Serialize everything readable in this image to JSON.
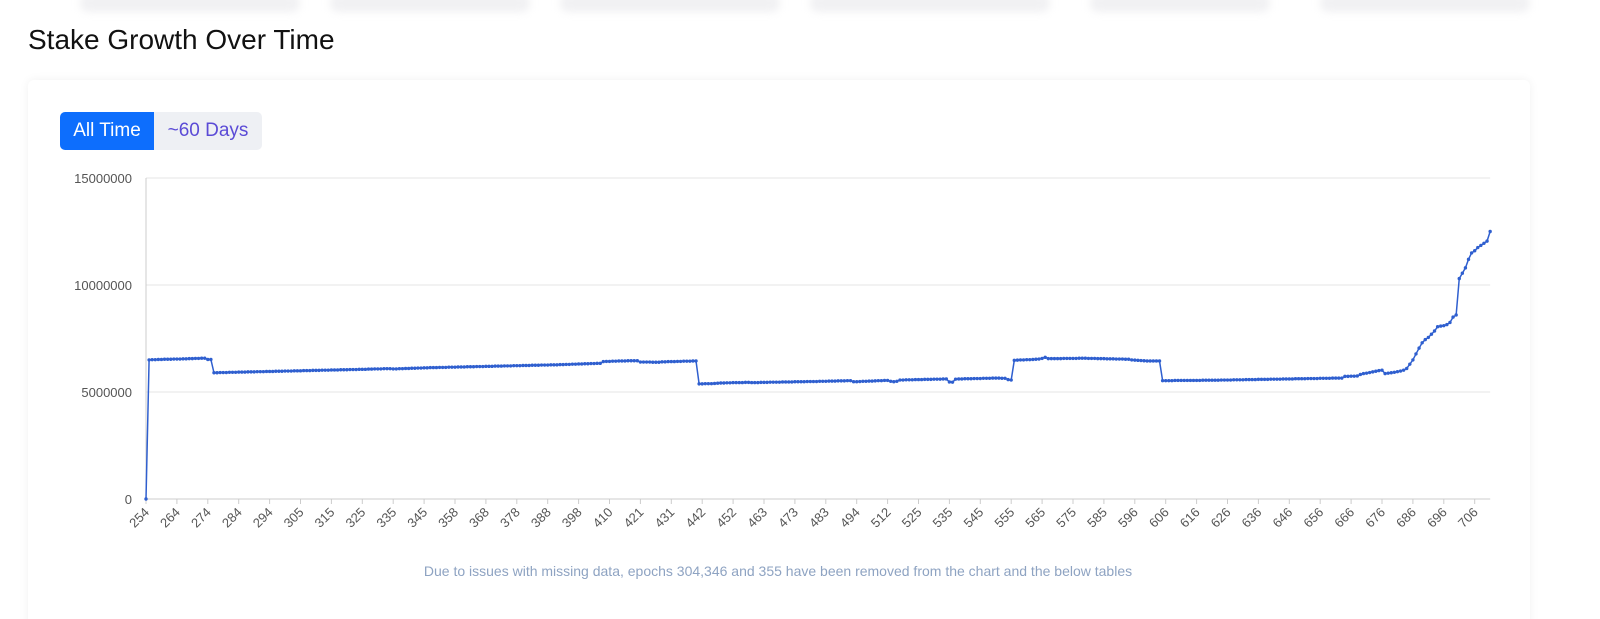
{
  "header": {
    "title": "Stake Growth Over Time"
  },
  "controls": [
    {
      "label": "All Time",
      "active": true
    },
    {
      "label": "~60 Days",
      "active": false
    }
  ],
  "chart_data": {
    "type": "line",
    "color": "#2f5fcf",
    "grid": true,
    "ylim": [
      0,
      15000000
    ],
    "yticks": [
      0,
      5000000,
      10000000,
      15000000
    ],
    "footnote": "Due to issues with missing data, epochs 304,346 and 355 have been removed from the chart and the below tables",
    "categories": [
      "254",
      null,
      null,
      null,
      null,
      null,
      null,
      null,
      null,
      null,
      "264",
      null,
      null,
      null,
      null,
      null,
      null,
      null,
      null,
      null,
      "274",
      null,
      null,
      null,
      null,
      null,
      null,
      null,
      null,
      null,
      "284",
      null,
      null,
      null,
      null,
      null,
      null,
      null,
      null,
      null,
      "294",
      null,
      null,
      null,
      null,
      null,
      null,
      null,
      null,
      null,
      "305",
      null,
      null,
      null,
      null,
      null,
      null,
      null,
      null,
      null,
      "315",
      null,
      null,
      null,
      null,
      null,
      null,
      null,
      null,
      null,
      "325",
      null,
      null,
      null,
      null,
      null,
      null,
      null,
      null,
      null,
      "335",
      null,
      null,
      null,
      null,
      null,
      null,
      null,
      null,
      null,
      "345",
      null,
      null,
      null,
      null,
      null,
      null,
      null,
      null,
      null,
      "358",
      null,
      null,
      null,
      null,
      null,
      null,
      null,
      null,
      null,
      "368",
      null,
      null,
      null,
      null,
      null,
      null,
      null,
      null,
      null,
      "378",
      null,
      null,
      null,
      null,
      null,
      null,
      null,
      null,
      null,
      "388",
      null,
      null,
      null,
      null,
      null,
      null,
      null,
      null,
      null,
      "398",
      null,
      null,
      null,
      null,
      null,
      null,
      null,
      null,
      null,
      "410",
      null,
      null,
      null,
      null,
      null,
      null,
      null,
      null,
      null,
      "421",
      null,
      null,
      null,
      null,
      null,
      null,
      null,
      null,
      null,
      "431",
      null,
      null,
      null,
      null,
      null,
      null,
      null,
      null,
      null,
      "442",
      null,
      null,
      null,
      null,
      null,
      null,
      null,
      null,
      null,
      "452",
      null,
      null,
      null,
      null,
      null,
      null,
      null,
      null,
      null,
      "463",
      null,
      null,
      null,
      null,
      null,
      null,
      null,
      null,
      null,
      "473",
      null,
      null,
      null,
      null,
      null,
      null,
      null,
      null,
      null,
      "483",
      null,
      null,
      null,
      null,
      null,
      null,
      null,
      null,
      null,
      "494",
      null,
      null,
      null,
      null,
      null,
      null,
      null,
      null,
      null,
      "512",
      null,
      null,
      null,
      null,
      null,
      null,
      null,
      null,
      null,
      "525",
      null,
      null,
      null,
      null,
      null,
      null,
      null,
      null,
      null,
      "535",
      null,
      null,
      null,
      null,
      null,
      null,
      null,
      null,
      null,
      "545",
      null,
      null,
      null,
      null,
      null,
      null,
      null,
      null,
      null,
      "555",
      null,
      null,
      null,
      null,
      null,
      null,
      null,
      null,
      null,
      "565",
      null,
      null,
      null,
      null,
      null,
      null,
      null,
      null,
      null,
      "575",
      null,
      null,
      null,
      null,
      null,
      null,
      null,
      null,
      null,
      "585",
      null,
      null,
      null,
      null,
      null,
      null,
      null,
      null,
      null,
      "596",
      null,
      null,
      null,
      null,
      null,
      null,
      null,
      null,
      null,
      "606",
      null,
      null,
      null,
      null,
      null,
      null,
      null,
      null,
      null,
      "616",
      null,
      null,
      null,
      null,
      null,
      null,
      null,
      null,
      null,
      "626",
      null,
      null,
      null,
      null,
      null,
      null,
      null,
      null,
      null,
      "636",
      null,
      null,
      null,
      null,
      null,
      null,
      null,
      null,
      null,
      "646",
      null,
      null,
      null,
      null,
      null,
      null,
      null,
      null,
      null,
      "656",
      null,
      null,
      null,
      null,
      null,
      null,
      null,
      null,
      null,
      "666",
      null,
      null,
      null,
      null,
      null,
      null,
      null,
      null,
      null,
      "676",
      null,
      null,
      null,
      null,
      null,
      null,
      null,
      null,
      null,
      "686",
      null,
      null,
      null,
      null,
      null,
      null,
      null,
      null,
      null,
      "696",
      null,
      null,
      null,
      null,
      null,
      null,
      null,
      null,
      null,
      "706",
      null,
      null,
      null,
      null,
      null
    ],
    "values": [
      0,
      6500000,
      6510000,
      6510000,
      6520000,
      6520000,
      6530000,
      6530000,
      6530000,
      6540000,
      6540000,
      6540000,
      6550000,
      6550000,
      6560000,
      6560000,
      6570000,
      6570000,
      6580000,
      6580000,
      6520000,
      6520000,
      5900000,
      5900000,
      5910000,
      5910000,
      5910000,
      5920000,
      5920000,
      5920000,
      5930000,
      5930000,
      5930000,
      5940000,
      5940000,
      5940000,
      5950000,
      5950000,
      5950000,
      5960000,
      5960000,
      5960000,
      5970000,
      5970000,
      5970000,
      5980000,
      5980000,
      5980000,
      5990000,
      5990000,
      5990000,
      6000000,
      6000000,
      6000000,
      6010000,
      6010000,
      6010000,
      6020000,
      6020000,
      6020000,
      6030000,
      6030000,
      6030000,
      6040000,
      6040000,
      6040000,
      6050000,
      6050000,
      6050000,
      6060000,
      6060000,
      6060000,
      6070000,
      6070000,
      6080000,
      6080000,
      6080000,
      6090000,
      6090000,
      6090000,
      6080000,
      6080000,
      6090000,
      6090000,
      6100000,
      6100000,
      6110000,
      6110000,
      6120000,
      6120000,
      6130000,
      6130000,
      6140000,
      6140000,
      6140000,
      6150000,
      6150000,
      6150000,
      6160000,
      6160000,
      6160000,
      6170000,
      6170000,
      6170000,
      6180000,
      6180000,
      6180000,
      6190000,
      6190000,
      6190000,
      6200000,
      6200000,
      6200000,
      6210000,
      6210000,
      6210000,
      6220000,
      6220000,
      6220000,
      6230000,
      6230000,
      6230000,
      6240000,
      6240000,
      6240000,
      6250000,
      6250000,
      6250000,
      6260000,
      6260000,
      6260000,
      6270000,
      6270000,
      6270000,
      6280000,
      6280000,
      6290000,
      6290000,
      6300000,
      6300000,
      6310000,
      6310000,
      6320000,
      6320000,
      6330000,
      6330000,
      6340000,
      6340000,
      6420000,
      6430000,
      6430000,
      6440000,
      6440000,
      6450000,
      6450000,
      6450000,
      6460000,
      6460000,
      6460000,
      6460000,
      6400000,
      6400000,
      6400000,
      6400000,
      6390000,
      6390000,
      6390000,
      6410000,
      6410000,
      6420000,
      6420000,
      6420000,
      6430000,
      6430000,
      6440000,
      6440000,
      6440000,
      6450000,
      6450000,
      5380000,
      5380000,
      5390000,
      5390000,
      5390000,
      5400000,
      5410000,
      5420000,
      5420000,
      5430000,
      5430000,
      5440000,
      5440000,
      5440000,
      5440000,
      5450000,
      5450000,
      5440000,
      5440000,
      5440000,
      5450000,
      5450000,
      5450000,
      5460000,
      5460000,
      5460000,
      5460000,
      5470000,
      5470000,
      5470000,
      5470000,
      5480000,
      5480000,
      5480000,
      5480000,
      5490000,
      5490000,
      5490000,
      5490000,
      5500000,
      5500000,
      5500000,
      5510000,
      5510000,
      5510000,
      5520000,
      5520000,
      5520000,
      5530000,
      5530000,
      5480000,
      5480000,
      5490000,
      5500000,
      5500000,
      5510000,
      5510000,
      5520000,
      5530000,
      5530000,
      5540000,
      5540000,
      5500000,
      5480000,
      5500000,
      5560000,
      5560000,
      5570000,
      5570000,
      5570000,
      5580000,
      5580000,
      5580000,
      5590000,
      5590000,
      5590000,
      5600000,
      5600000,
      5600000,
      5610000,
      5610000,
      5470000,
      5460000,
      5600000,
      5610000,
      5610000,
      5620000,
      5620000,
      5620000,
      5630000,
      5630000,
      5630000,
      5640000,
      5640000,
      5640000,
      5650000,
      5650000,
      5650000,
      5640000,
      5640000,
      5580000,
      5560000,
      6480000,
      6490000,
      6500000,
      6500000,
      6510000,
      6510000,
      6520000,
      6530000,
      6540000,
      6570000,
      6620000,
      6560000,
      6560000,
      6560000,
      6560000,
      6560000,
      6570000,
      6570000,
      6570000,
      6570000,
      6570000,
      6580000,
      6580000,
      6580000,
      6570000,
      6570000,
      6570000,
      6560000,
      6560000,
      6560000,
      6550000,
      6550000,
      6550000,
      6540000,
      6540000,
      6540000,
      6530000,
      6530000,
      6500000,
      6490000,
      6480000,
      6470000,
      6460000,
      6450000,
      6450000,
      6450000,
      6450000,
      6450000,
      5530000,
      5530000,
      5530000,
      5530000,
      5540000,
      5540000,
      5540000,
      5540000,
      5540000,
      5540000,
      5540000,
      5540000,
      5540000,
      5550000,
      5550000,
      5550000,
      5550000,
      5550000,
      5550000,
      5560000,
      5560000,
      5560000,
      5560000,
      5570000,
      5570000,
      5570000,
      5570000,
      5580000,
      5580000,
      5580000,
      5580000,
      5590000,
      5590000,
      5590000,
      5590000,
      5600000,
      5600000,
      5600000,
      5600000,
      5610000,
      5610000,
      5610000,
      5610000,
      5620000,
      5620000,
      5620000,
      5620000,
      5630000,
      5630000,
      5630000,
      5630000,
      5640000,
      5640000,
      5640000,
      5640000,
      5650000,
      5650000,
      5650000,
      5650000,
      5730000,
      5730000,
      5740000,
      5740000,
      5750000,
      5820000,
      5860000,
      5880000,
      5910000,
      5940000,
      5970000,
      6000000,
      6020000,
      5860000,
      5880000,
      5900000,
      5920000,
      5950000,
      5980000,
      6020000,
      6100000,
      6300000,
      6500000,
      6780000,
      7050000,
      7300000,
      7450000,
      7550000,
      7700000,
      7850000,
      8050000,
      8080000,
      8100000,
      8150000,
      8250000,
      8500000,
      8600000,
      10300000,
      10550000,
      10800000,
      11200000,
      11500000,
      11600000,
      11750000,
      11850000,
      11950000,
      12050000,
      12500000
    ]
  }
}
